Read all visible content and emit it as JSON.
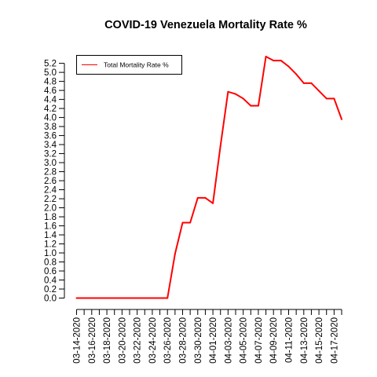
{
  "chart_data": {
    "type": "line",
    "title": "COVID-19 Venezuela Mortality Rate %",
    "xlabel": "",
    "ylabel": "",
    "x": [
      "03-14-2020",
      "03-15-2020",
      "03-16-2020",
      "03-17-2020",
      "03-18-2020",
      "03-19-2020",
      "03-20-2020",
      "03-21-2020",
      "03-22-2020",
      "03-23-2020",
      "03-24-2020",
      "03-25-2020",
      "03-26-2020",
      "03-27-2020",
      "03-28-2020",
      "03-29-2020",
      "03-30-2020",
      "03-31-2020",
      "04-01-2020",
      "04-02-2020",
      "04-03-2020",
      "04-04-2020",
      "04-05-2020",
      "04-06-2020",
      "04-07-2020",
      "04-08-2020",
      "04-09-2020",
      "04-10-2020",
      "04-11-2020",
      "04-12-2020",
      "04-13-2020",
      "04-14-2020",
      "04-15-2020",
      "04-16-2020",
      "04-17-2020",
      "04-18-2020"
    ],
    "x_tick_labels": [
      "03-14-2020",
      "03-16-2020",
      "03-18-2020",
      "03-20-2020",
      "03-22-2020",
      "03-24-2020",
      "03-26-2020",
      "03-28-2020",
      "03-30-2020",
      "04-01-2020",
      "04-03-2020",
      "04-05-2020",
      "04-07-2020",
      "04-09-2020",
      "04-11-2020",
      "04-13-2020",
      "04-15-2020",
      "04-17-2020"
    ],
    "ylim": [
      0,
      5.2
    ],
    "y_ticks": [
      "0.0",
      "0.2",
      "0.4",
      "0.6",
      "0.8",
      "1.0",
      "1.2",
      "1.4",
      "1.6",
      "1.8",
      "2.0",
      "2.2",
      "2.4",
      "2.6",
      "2.8",
      "3.0",
      "3.2",
      "3.4",
      "3.6",
      "3.8",
      "4.0",
      "4.2",
      "4.4",
      "4.6",
      "4.8",
      "5.0",
      "5.2"
    ],
    "series": [
      {
        "name": "Total Mortality Rate %",
        "color": "#ff0000",
        "values": [
          0,
          0,
          0,
          0,
          0,
          0,
          0,
          0,
          0,
          0,
          0,
          0,
          0,
          0.98,
          1.67,
          1.67,
          2.22,
          2.22,
          2.1,
          3.37,
          4.57,
          4.52,
          4.42,
          4.26,
          4.26,
          5.35,
          5.26,
          5.26,
          5.13,
          4.96,
          4.76,
          4.76,
          4.59,
          4.42,
          4.42,
          3.96
        ]
      }
    ],
    "legend_position": "top-left",
    "grid": false
  }
}
